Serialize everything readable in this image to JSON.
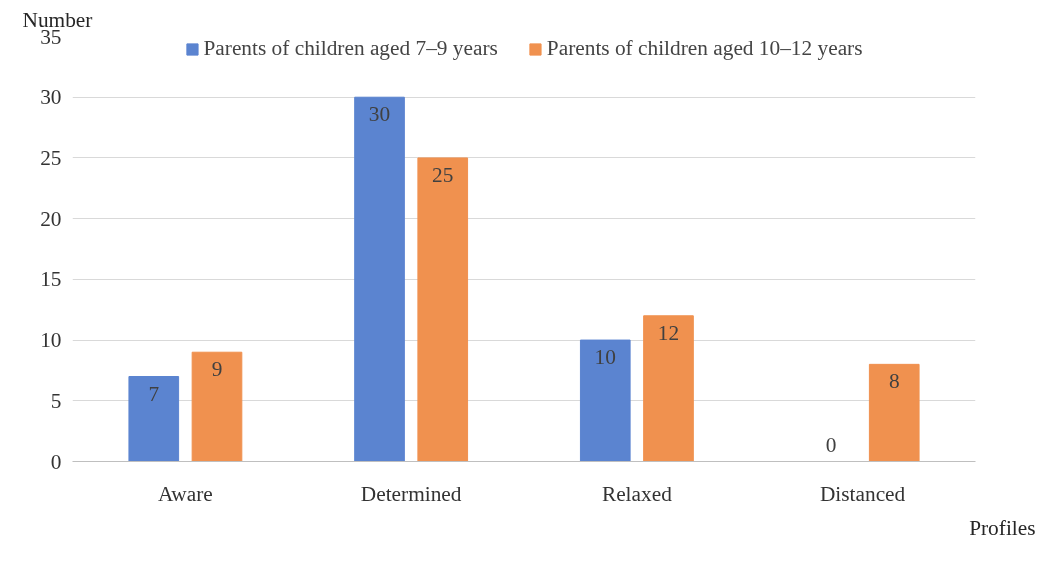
{
  "chart_data": {
    "type": "bar",
    "ylabel": "Number",
    "xlabel": "Profiles",
    "categories": [
      "Aware",
      "Determined",
      "Relaxed",
      "Distanced"
    ],
    "series": [
      {
        "name": "Parents of children aged 7–9 years",
        "color": "#5b84d0",
        "values": [
          7,
          30,
          10,
          0
        ]
      },
      {
        "name": "Parents of children aged 10–12 years",
        "color": "#f0914f",
        "values": [
          9,
          25,
          12,
          8
        ]
      }
    ],
    "ylim": [
      0,
      35
    ],
    "yticks": [
      0,
      5,
      10,
      15,
      20,
      25,
      30,
      35
    ],
    "grid": "y",
    "legend": "top",
    "data_labels": true
  }
}
